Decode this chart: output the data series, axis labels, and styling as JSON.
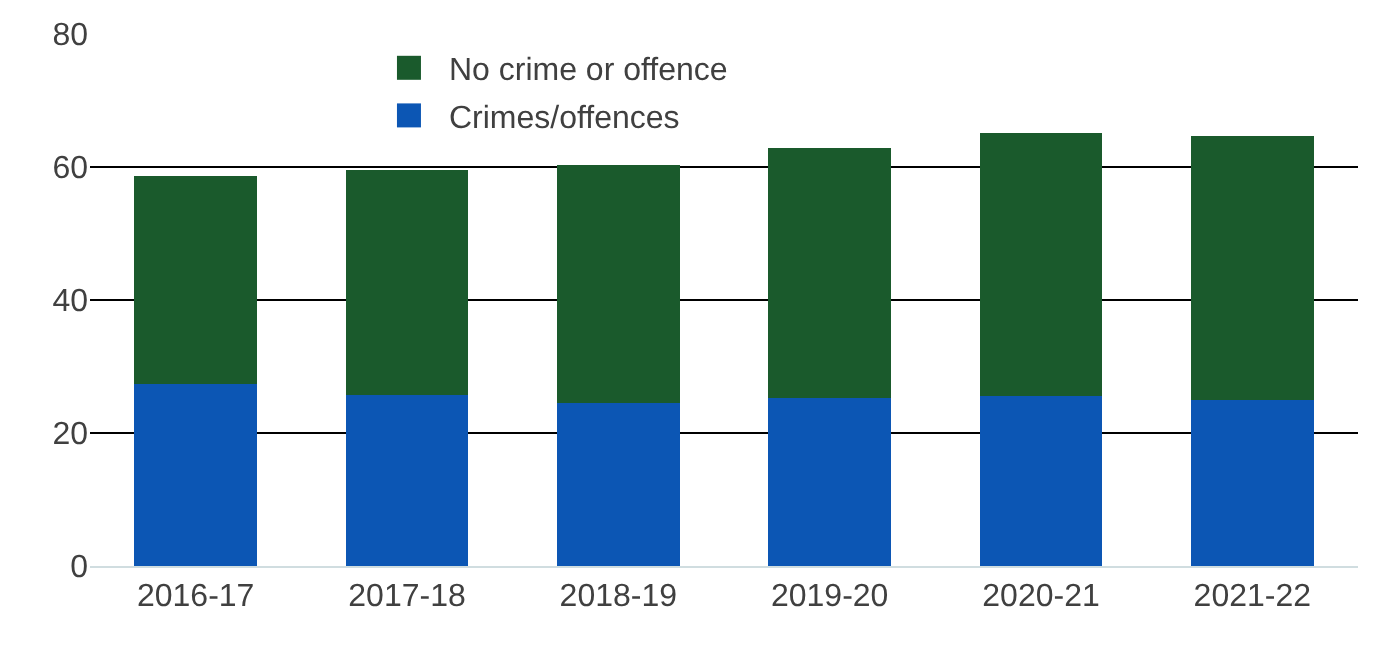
{
  "chart_data": {
    "type": "bar",
    "stacked": true,
    "categories": [
      "2016-17",
      "2017-18",
      "2018-19",
      "2019-20",
      "2020-21",
      "2021-22"
    ],
    "series": [
      {
        "name": "Crimes/offences",
        "color": "#0c56b4",
        "values": [
          27.3,
          25.7,
          24.5,
          25.2,
          25.5,
          24.9
        ]
      },
      {
        "name": "No crime or offence",
        "color": "#1a5a2c",
        "values": [
          31.4,
          33.8,
          35.8,
          37.6,
          39.6,
          39.7
        ]
      }
    ],
    "ylim": [
      0,
      80
    ],
    "yticks": [
      0,
      20,
      40,
      60,
      80
    ],
    "grid": "y",
    "legend": "top left"
  }
}
